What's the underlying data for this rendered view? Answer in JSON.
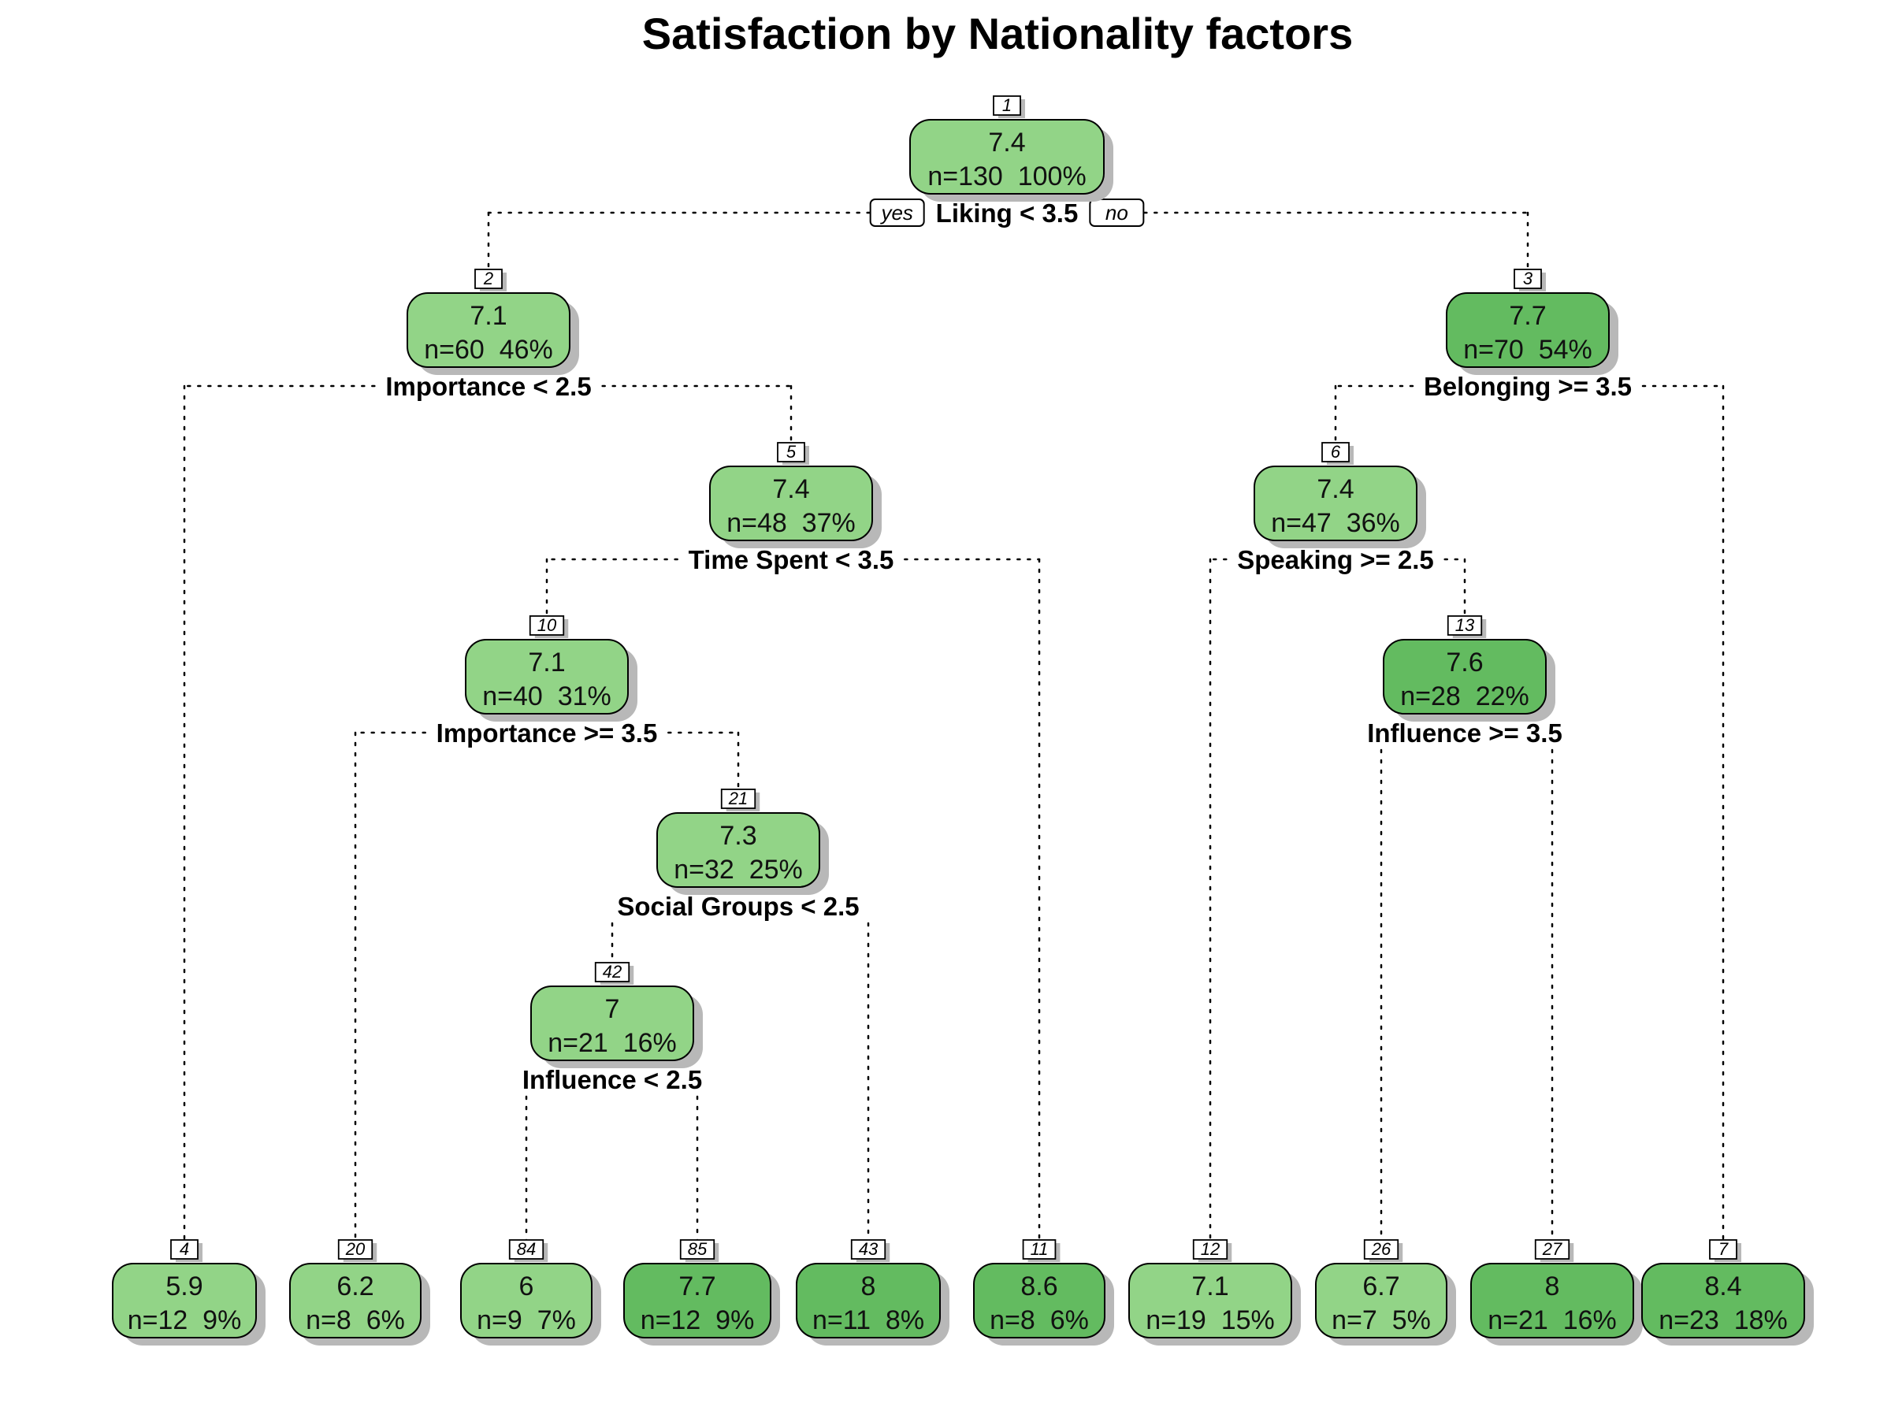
{
  "title": "Satisfaction by Nationality factors",
  "colors": {
    "light": "#92d487",
    "dark": "#63bb60",
    "border": "#000000",
    "shadow": "#b8b8b8"
  },
  "branch_labels": {
    "yes": "yes",
    "no": "no"
  },
  "nodes": [
    {
      "id": "1",
      "value": "7.4",
      "stats": "n=130  100%",
      "split": "Liking < 3.5",
      "shade": "light"
    },
    {
      "id": "2",
      "value": "7.1",
      "stats": "n=60  46%",
      "split": "Importance < 2.5",
      "shade": "light"
    },
    {
      "id": "3",
      "value": "7.7",
      "stats": "n=70  54%",
      "split": "Belonging >= 3.5",
      "shade": "dark"
    },
    {
      "id": "5",
      "value": "7.4",
      "stats": "n=48  37%",
      "split": "Time Spent < 3.5",
      "shade": "light"
    },
    {
      "id": "6",
      "value": "7.4",
      "stats": "n=47  36%",
      "split": "Speaking >= 2.5",
      "shade": "light"
    },
    {
      "id": "10",
      "value": "7.1",
      "stats": "n=40  31%",
      "split": "Importance >= 3.5",
      "shade": "light"
    },
    {
      "id": "13",
      "value": "7.6",
      "stats": "n=28  22%",
      "split": "Influence >= 3.5",
      "shade": "dark"
    },
    {
      "id": "21",
      "value": "7.3",
      "stats": "n=32  25%",
      "split": "Social Groups < 2.5",
      "shade": "light"
    },
    {
      "id": "42",
      "value": "7",
      "stats": "n=21  16%",
      "split": "Influence < 2.5",
      "shade": "light"
    },
    {
      "id": "4",
      "value": "5.9",
      "stats": "n=12  9%",
      "shade": "light"
    },
    {
      "id": "20",
      "value": "6.2",
      "stats": "n=8  6%",
      "shade": "light"
    },
    {
      "id": "84",
      "value": "6",
      "stats": "n=9  7%",
      "shade": "light"
    },
    {
      "id": "85",
      "value": "7.7",
      "stats": "n=12  9%",
      "shade": "dark"
    },
    {
      "id": "43",
      "value": "8",
      "stats": "n=11  8%",
      "shade": "dark"
    },
    {
      "id": "11",
      "value": "8.6",
      "stats": "n=8  6%",
      "shade": "dark"
    },
    {
      "id": "12",
      "value": "7.1",
      "stats": "n=19  15%",
      "shade": "light"
    },
    {
      "id": "26",
      "value": "6.7",
      "stats": "n=7  5%",
      "shade": "light"
    },
    {
      "id": "27",
      "value": "8",
      "stats": "n=21  16%",
      "shade": "dark"
    },
    {
      "id": "7",
      "value": "8.4",
      "stats": "n=23  18%",
      "shade": "dark"
    }
  ],
  "edges": [
    {
      "from": "1",
      "to": "2"
    },
    {
      "from": "1",
      "to": "3"
    },
    {
      "from": "2",
      "to": "4"
    },
    {
      "from": "2",
      "to": "5"
    },
    {
      "from": "3",
      "to": "6"
    },
    {
      "from": "3",
      "to": "7"
    },
    {
      "from": "5",
      "to": "10"
    },
    {
      "from": "5",
      "to": "11"
    },
    {
      "from": "6",
      "to": "12"
    },
    {
      "from": "6",
      "to": "13"
    },
    {
      "from": "10",
      "to": "20"
    },
    {
      "from": "10",
      "to": "21"
    },
    {
      "from": "13",
      "to": "26"
    },
    {
      "from": "13",
      "to": "27"
    },
    {
      "from": "21",
      "to": "42"
    },
    {
      "from": "21",
      "to": "43"
    },
    {
      "from": "42",
      "to": "84"
    },
    {
      "from": "42",
      "to": "85"
    }
  ]
}
